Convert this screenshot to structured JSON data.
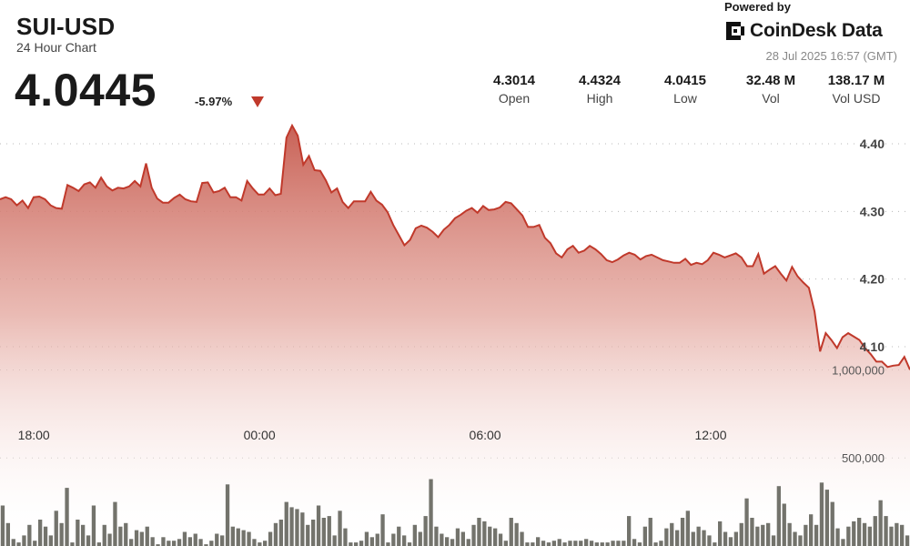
{
  "header": {
    "ticker": "SUI-USD",
    "subtitle": "24 Hour Chart",
    "price": "4.0445",
    "change": "-5.97%"
  },
  "branding": {
    "powered_by": "Powered by",
    "name": "CoinDesk Data",
    "timestamp": "28 Jul 2025 16:57 (GMT)"
  },
  "stats": [
    {
      "value": "4.3014",
      "label": "Open"
    },
    {
      "value": "4.4324",
      "label": "High"
    },
    {
      "value": "4.0415",
      "label": "Low"
    },
    {
      "value": "32.48 M",
      "label": "Vol"
    },
    {
      "value": "138.17 M",
      "label": "Vol USD"
    }
  ],
  "colors": {
    "line": "#c0392b",
    "fill_top": "#c65a4e",
    "volume_bar": "#5a5a52",
    "down_arrow": "#c0392b"
  },
  "chart_data": {
    "type": "area",
    "title": "SUI-USD",
    "subtitle": "24 Hour Chart",
    "price": {
      "x_range_hours": [
        0,
        24.2
      ],
      "ylim": [
        3.98,
        4.48
      ],
      "y_ticks": [
        4.1,
        4.2,
        4.3,
        4.4
      ],
      "y_tick_labels": [
        "4.10",
        "4.20",
        "4.30",
        "4.40"
      ],
      "values": [
        4.318,
        4.321,
        4.318,
        4.309,
        4.316,
        4.305,
        4.321,
        4.322,
        4.318,
        4.309,
        4.305,
        4.304,
        4.339,
        4.335,
        4.33,
        4.34,
        4.343,
        4.335,
        4.35,
        4.337,
        4.331,
        4.335,
        4.334,
        4.337,
        4.345,
        4.337,
        4.371,
        4.335,
        4.319,
        4.313,
        4.313,
        4.32,
        4.325,
        4.318,
        4.315,
        4.314,
        4.342,
        4.343,
        4.328,
        4.33,
        4.335,
        4.321,
        4.321,
        4.316,
        4.345,
        4.334,
        4.325,
        4.325,
        4.334,
        4.324,
        4.326,
        4.409,
        4.427,
        4.412,
        4.369,
        4.382,
        4.361,
        4.36,
        4.346,
        4.328,
        4.334,
        4.314,
        4.305,
        4.315,
        4.315,
        4.315,
        4.329,
        4.316,
        4.31,
        4.299,
        4.28,
        4.265,
        4.25,
        4.258,
        4.275,
        4.279,
        4.276,
        4.27,
        4.262,
        4.273,
        4.28,
        4.29,
        4.295,
        4.301,
        4.305,
        4.298,
        4.308,
        4.302,
        4.303,
        4.306,
        4.314,
        4.312,
        4.303,
        4.294,
        4.277,
        4.277,
        4.28,
        4.261,
        4.253,
        4.238,
        4.232,
        4.244,
        4.249,
        4.239,
        4.242,
        4.249,
        4.244,
        4.237,
        4.228,
        4.225,
        4.229,
        4.235,
        4.239,
        4.236,
        4.229,
        4.234,
        4.236,
        4.232,
        4.228,
        4.226,
        4.224,
        4.224,
        4.23,
        4.221,
        4.224,
        4.222,
        4.228,
        4.239,
        4.236,
        4.232,
        4.235,
        4.238,
        4.232,
        4.219,
        4.219,
        4.237,
        4.208,
        4.214,
        4.219,
        4.208,
        4.198,
        4.218,
        4.204,
        4.195,
        4.187,
        4.152,
        4.093,
        4.12,
        4.11,
        4.098,
        4.114,
        4.12,
        4.115,
        4.11,
        4.098,
        4.089,
        4.078,
        4.078,
        4.07,
        4.072,
        4.073,
        4.085,
        4.066
      ]
    },
    "volume": {
      "ylim": [
        0,
        1240000
      ],
      "y_ticks": [
        500000,
        1000000
      ],
      "y_tick_labels": [
        "500,000",
        "1,000,000"
      ],
      "values": [
        230000,
        130000,
        40000,
        20000,
        60000,
        120000,
        30000,
        150000,
        110000,
        60000,
        200000,
        130000,
        330000,
        20000,
        150000,
        120000,
        60000,
        230000,
        20000,
        120000,
        70000,
        250000,
        110000,
        130000,
        40000,
        90000,
        80000,
        110000,
        50000,
        10000,
        50000,
        30000,
        30000,
        40000,
        80000,
        50000,
        70000,
        40000,
        10000,
        30000,
        70000,
        60000,
        350000,
        110000,
        100000,
        90000,
        80000,
        40000,
        20000,
        30000,
        80000,
        130000,
        150000,
        250000,
        220000,
        210000,
        190000,
        120000,
        150000,
        230000,
        160000,
        170000,
        60000,
        200000,
        100000,
        20000,
        20000,
        30000,
        80000,
        50000,
        70000,
        180000,
        20000,
        70000,
        110000,
        60000,
        20000,
        120000,
        80000,
        170000,
        380000,
        110000,
        70000,
        50000,
        40000,
        100000,
        80000,
        40000,
        120000,
        160000,
        140000,
        110000,
        100000,
        70000,
        30000,
        160000,
        130000,
        80000,
        20000,
        20000,
        50000,
        30000,
        20000,
        30000,
        40000,
        20000,
        30000,
        30000,
        30000,
        40000,
        30000,
        20000,
        20000,
        20000,
        30000,
        30000,
        30000,
        170000,
        40000,
        20000,
        110000,
        160000,
        20000,
        30000,
        100000,
        130000,
        90000,
        160000,
        200000,
        80000,
        110000,
        90000,
        60000,
        20000,
        140000,
        80000,
        50000,
        80000,
        130000,
        270000,
        160000,
        110000,
        120000,
        130000,
        60000,
        340000,
        240000,
        130000,
        80000,
        60000,
        120000,
        180000,
        120000,
        360000,
        320000,
        250000,
        100000,
        40000,
        110000,
        140000,
        160000,
        130000,
        110000,
        170000,
        260000,
        170000,
        110000,
        130000,
        120000,
        60000
      ]
    },
    "x_ticks": [
      {
        "hour": 0.9,
        "label": "18:00"
      },
      {
        "hour": 6.9,
        "label": "00:00"
      },
      {
        "hour": 12.9,
        "label": "06:00"
      },
      {
        "hour": 18.9,
        "label": "12:00"
      }
    ],
    "grid": "horizontal dotted",
    "legend": "none"
  }
}
